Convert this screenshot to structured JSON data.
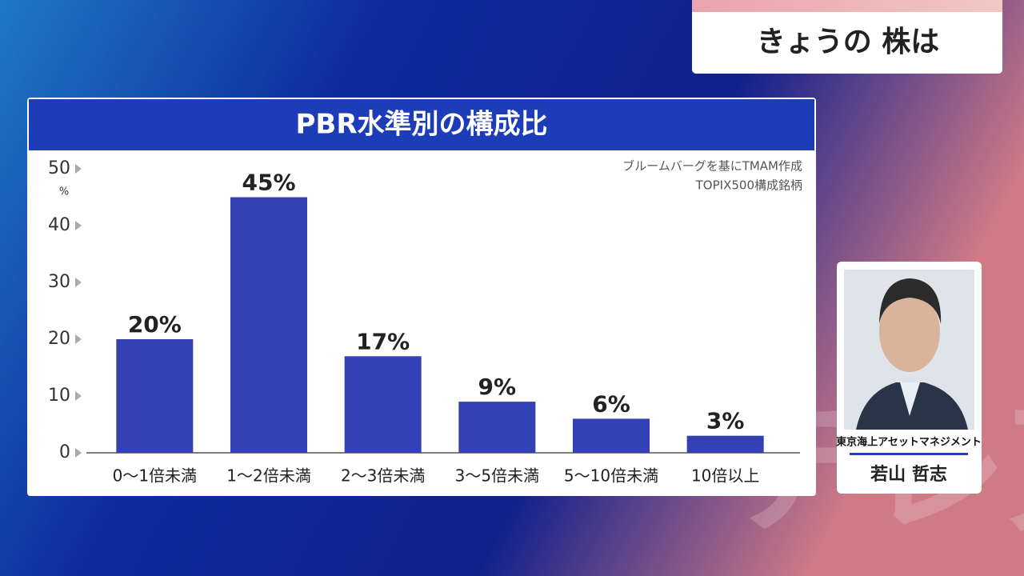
{
  "chart_data": {
    "type": "bar",
    "title": "PBR水準別の構成比",
    "source": [
      "ブルームバーグを基にTMAM作成",
      "TOPIX500構成銘柄"
    ],
    "y_unit": "%",
    "categories": [
      "0～1倍未満",
      "1～2倍未満",
      "2～3倍未満",
      "3～5倍未満",
      "5～10倍未満",
      "10倍以上"
    ],
    "values": [
      20,
      45,
      17,
      9,
      6,
      3
    ],
    "value_labels": [
      "20%",
      "45%",
      "17%",
      "9%",
      "6%",
      "3%"
    ],
    "color": "#3341b5",
    "ylim": [
      0,
      50
    ],
    "yticks": [
      0,
      10,
      20,
      30,
      40,
      50
    ],
    "grid": false
  },
  "header": {
    "title": "きょうの 株は"
  },
  "guest": {
    "company": "東京海上アセットマネジメント",
    "name": "若山 哲志"
  },
  "watermark": "テレ東"
}
